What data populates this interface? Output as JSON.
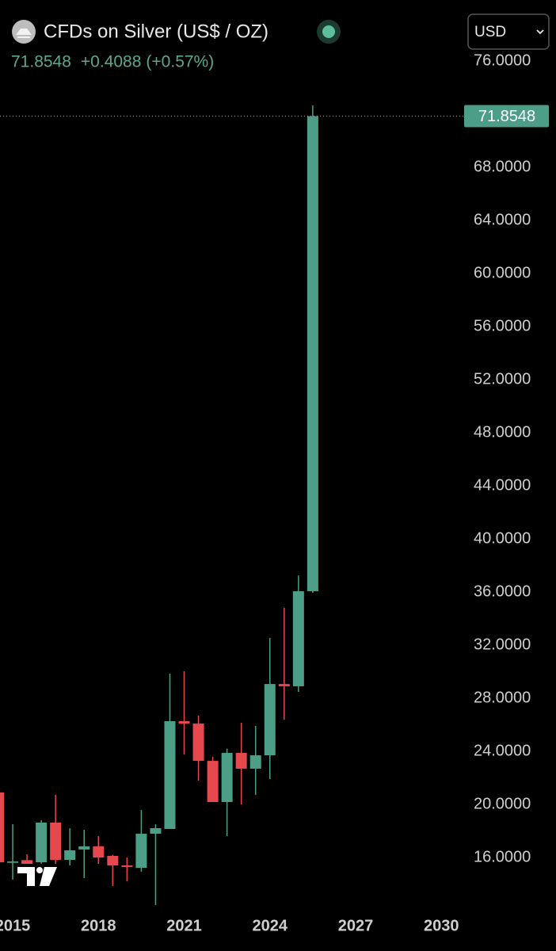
{
  "header": {
    "title": "CFDs on Silver (US$ / OZ)",
    "change": "+0.4088",
    "change_percent": "(+0.57%)",
    "currency": "USD"
  },
  "chart_data": {
    "type": "candlestick",
    "categories": [
      null,
      "2015",
      null,
      null,
      null,
      null,
      null,
      "2018",
      null,
      null,
      null,
      null,
      null,
      "2021",
      null,
      null,
      null,
      null,
      null,
      "2024",
      null,
      null,
      null,
      null,
      null,
      "2027",
      null,
      null,
      null,
      null,
      null,
      "2030"
    ],
    "open": [
      20.9,
      15.6,
      15.8,
      15.64,
      18.63,
      15.82,
      16.6,
      16.84,
      16.12,
      15.4,
      15.22,
      17.79,
      18.15,
      26.27,
      26.09,
      23.28,
      20.18,
      23.88,
      22.69,
      23.7,
      29.07,
      28.9,
      36.06,
      null,
      null,
      null,
      null,
      null,
      null,
      null,
      null,
      null
    ],
    "high": [
      21.0,
      18.51,
      16.24,
      18.8,
      20.72,
      18.2,
      18.09,
      17.61,
      16.2,
      16.0,
      19.58,
      18.5,
      29.85,
      30.03,
      26.69,
      23.58,
      24.2,
      26.15,
      25.91,
      32.54,
      34.81,
      37.25,
      72.66,
      null,
      null,
      null,
      null,
      null,
      null,
      null,
      null,
      null
    ],
    "low": [
      15.3,
      14.33,
      14.03,
      15.3,
      15.52,
      15.4,
      14.45,
      15.52,
      13.85,
      14.21,
      14.93,
      12.42,
      18.15,
      23.76,
      21.79,
      20.18,
      17.61,
      20.0,
      20.72,
      21.91,
      26.39,
      28.48,
      35.94,
      null,
      null,
      null,
      null,
      null,
      null,
      null,
      null,
      null
    ],
    "close": [
      15.64,
      15.7,
      15.5,
      18.63,
      15.82,
      16.54,
      16.84,
      16.0,
      15.4,
      15.28,
      17.79,
      18.21,
      26.27,
      26.09,
      23.28,
      20.18,
      23.88,
      22.69,
      23.7,
      29.07,
      28.9,
      36.06,
      71.8548,
      null,
      null,
      null,
      null,
      null,
      null,
      null,
      null,
      null
    ],
    "up_color": "#4c9e87",
    "down_color": "#e5484d",
    "ylim": [
      12,
      77.5
    ],
    "yticks": [
      {
        "value": 16,
        "label": "16.0000"
      },
      {
        "value": 20,
        "label": "20.0000"
      },
      {
        "value": 24,
        "label": "24.0000"
      },
      {
        "value": 28,
        "label": "28.0000"
      },
      {
        "value": 32,
        "label": "32.0000"
      },
      {
        "value": 36,
        "label": "36.0000"
      },
      {
        "value": 40,
        "label": "40.0000"
      },
      {
        "value": 44,
        "label": "44.0000"
      },
      {
        "value": 48,
        "label": "48.0000"
      },
      {
        "value": 52,
        "label": "52.0000"
      },
      {
        "value": 56,
        "label": "56.0000"
      },
      {
        "value": 60,
        "label": "60.0000"
      },
      {
        "value": 64,
        "label": "64.0000"
      },
      {
        "value": 68,
        "label": "68.0000"
      },
      {
        "value": 76,
        "label": "76.0000"
      }
    ]
  }
}
